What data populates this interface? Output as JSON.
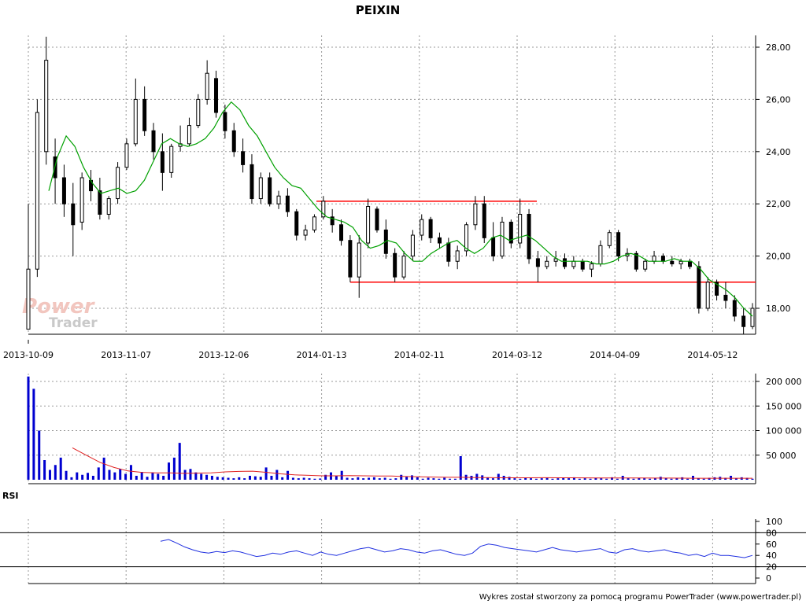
{
  "chart_data": [
    {
      "type": "candlestick",
      "title": "PEIXIN",
      "x_tick_labels": [
        "2013-10-09",
        "2013-11-07",
        "2013-12-06",
        "2014-01-13",
        "2014-02-11",
        "2014-03-12",
        "2014-04-09",
        "2014-05-12"
      ],
      "y_tick_labels": [
        "28,00",
        "26,00",
        "24,00",
        "22,00",
        "20,00",
        "18,00"
      ],
      "ylim": [
        17.0,
        28.5
      ],
      "grid": true,
      "candles_ohlc": [
        [
          17.2,
          22.0,
          17.2,
          19.5
        ],
        [
          19.5,
          26.0,
          19.2,
          25.5
        ],
        [
          24.0,
          28.4,
          23.5,
          27.5
        ],
        [
          23.8,
          24.5,
          22.0,
          23.0
        ],
        [
          23.0,
          23.5,
          21.5,
          22.0
        ],
        [
          22.0,
          22.8,
          20.0,
          21.2
        ],
        [
          21.3,
          23.2,
          21.0,
          23.0
        ],
        [
          22.9,
          23.3,
          22.1,
          22.5
        ],
        [
          22.5,
          23.0,
          21.4,
          21.6
        ],
        [
          21.6,
          22.3,
          21.4,
          22.2
        ],
        [
          22.2,
          23.6,
          22.0,
          23.4
        ],
        [
          23.4,
          24.5,
          23.3,
          24.3
        ],
        [
          24.3,
          26.8,
          24.2,
          26.0
        ],
        [
          26.0,
          26.5,
          24.6,
          24.8
        ],
        [
          24.8,
          25.1,
          23.7,
          24.0
        ],
        [
          24.0,
          24.7,
          22.5,
          23.2
        ],
        [
          23.2,
          24.3,
          23.0,
          24.2
        ],
        [
          24.2,
          25.0,
          24.0,
          24.3
        ],
        [
          24.3,
          25.3,
          24.2,
          25.0
        ],
        [
          25.0,
          26.2,
          24.9,
          26.0
        ],
        [
          26.0,
          27.5,
          25.8,
          27.0
        ],
        [
          26.8,
          27.1,
          25.3,
          25.5
        ],
        [
          25.5,
          25.8,
          24.5,
          24.8
        ],
        [
          24.8,
          25.1,
          23.8,
          24.0
        ],
        [
          24.0,
          24.5,
          23.2,
          23.5
        ],
        [
          23.5,
          23.9,
          22.0,
          22.2
        ],
        [
          22.2,
          23.2,
          22.0,
          23.0
        ],
        [
          23.0,
          23.2,
          21.9,
          22.0
        ],
        [
          22.0,
          22.5,
          21.8,
          22.3
        ],
        [
          22.3,
          22.6,
          21.5,
          21.7
        ],
        [
          21.7,
          21.8,
          20.6,
          20.8
        ],
        [
          20.8,
          21.2,
          20.6,
          21.0
        ],
        [
          21.0,
          21.6,
          20.9,
          21.5
        ],
        [
          21.5,
          22.3,
          21.4,
          22.1
        ],
        [
          21.5,
          21.8,
          20.9,
          21.2
        ],
        [
          21.2,
          21.4,
          20.4,
          20.6
        ],
        [
          20.6,
          20.8,
          19.0,
          19.2
        ],
        [
          19.2,
          20.8,
          18.4,
          20.5
        ],
        [
          20.5,
          22.2,
          20.3,
          21.9
        ],
        [
          21.8,
          21.9,
          20.9,
          21.0
        ],
        [
          21.0,
          21.4,
          19.9,
          20.1
        ],
        [
          20.1,
          20.3,
          19.0,
          19.2
        ],
        [
          19.2,
          20.2,
          19.1,
          20.0
        ],
        [
          20.0,
          21.0,
          19.8,
          20.8
        ],
        [
          20.8,
          21.6,
          20.6,
          21.4
        ],
        [
          21.4,
          21.5,
          20.5,
          20.7
        ],
        [
          20.7,
          20.9,
          20.3,
          20.5
        ],
        [
          20.5,
          20.7,
          19.6,
          19.8
        ],
        [
          19.8,
          20.4,
          19.5,
          20.2
        ],
        [
          20.2,
          21.3,
          20.0,
          21.2
        ],
        [
          21.2,
          22.3,
          21.0,
          22.0
        ],
        [
          22.0,
          22.3,
          20.5,
          20.7
        ],
        [
          20.7,
          21.3,
          19.8,
          20.0
        ],
        [
          20.0,
          21.5,
          19.9,
          21.3
        ],
        [
          21.3,
          21.4,
          20.3,
          20.5
        ],
        [
          20.5,
          22.2,
          20.3,
          21.6
        ],
        [
          21.6,
          21.8,
          19.7,
          19.9
        ],
        [
          19.9,
          20.2,
          19.0,
          19.6
        ],
        [
          19.6,
          20.0,
          19.5,
          19.8
        ],
        [
          19.8,
          20.2,
          19.6,
          19.9
        ],
        [
          19.9,
          20.1,
          19.5,
          19.6
        ],
        [
          19.6,
          20.0,
          19.5,
          19.8
        ],
        [
          19.8,
          19.9,
          19.4,
          19.5
        ],
        [
          19.5,
          19.8,
          19.2,
          19.7
        ],
        [
          19.7,
          20.6,
          19.6,
          20.4
        ],
        [
          20.4,
          21.0,
          20.3,
          20.9
        ],
        [
          20.9,
          21.0,
          19.8,
          20.0
        ],
        [
          20.0,
          20.3,
          19.8,
          20.1
        ],
        [
          20.1,
          20.2,
          19.4,
          19.5
        ],
        [
          19.5,
          19.9,
          19.4,
          19.8
        ],
        [
          19.8,
          20.2,
          19.7,
          20.0
        ],
        [
          20.0,
          20.1,
          19.7,
          19.8
        ],
        [
          19.8,
          20.0,
          19.6,
          19.7
        ],
        [
          19.7,
          19.9,
          19.5,
          19.8
        ],
        [
          19.8,
          19.9,
          19.5,
          19.6
        ],
        [
          19.6,
          19.8,
          17.8,
          18.0
        ],
        [
          18.0,
          19.2,
          17.9,
          19.0
        ],
        [
          19.0,
          19.1,
          18.3,
          18.5
        ],
        [
          18.5,
          19.0,
          18.0,
          18.3
        ],
        [
          18.3,
          18.5,
          17.5,
          17.7
        ],
        [
          17.7,
          18.0,
          17.0,
          17.3
        ],
        [
          17.3,
          18.2,
          17.2,
          18.0
        ]
      ],
      "ma_line": [
        22.5,
        23.8,
        24.6,
        24.2,
        23.4,
        22.8,
        22.4,
        22.5,
        22.6,
        22.4,
        22.5,
        22.9,
        23.6,
        24.3,
        24.5,
        24.3,
        24.2,
        24.3,
        24.5,
        24.9,
        25.5,
        25.9,
        25.6,
        25.0,
        24.6,
        24.0,
        23.4,
        23.0,
        22.7,
        22.6,
        22.2,
        21.8,
        21.5,
        21.4,
        21.3,
        21.1,
        20.6,
        20.3,
        20.4,
        20.6,
        20.5,
        20.1,
        19.8,
        19.8,
        20.1,
        20.3,
        20.5,
        20.6,
        20.3,
        20.1,
        20.3,
        20.7,
        20.8,
        20.6,
        20.7,
        20.8,
        20.6,
        20.3,
        20.0,
        19.8,
        19.8,
        19.8,
        19.8,
        19.7,
        19.7,
        19.8,
        20.0,
        20.1,
        20.0,
        19.8,
        19.8,
        19.8,
        19.9,
        19.8,
        19.8,
        19.5,
        19.1,
        18.9,
        18.7,
        18.4,
        18.0,
        17.7
      ],
      "resistance_line": 22.1,
      "support_line": 19.0,
      "watermark": [
        "Power",
        "Trader"
      ],
      "colors": {
        "candle": "#000000",
        "ma": "#00a000",
        "levels": "#ff0000",
        "grid": "#aaaaaa"
      }
    },
    {
      "type": "bar",
      "title": "",
      "y_tick_labels": [
        "200 000",
        "150 000",
        "100 000",
        "50 000"
      ],
      "ylim": [
        0,
        210000
      ],
      "values": [
        210000,
        185000,
        100000,
        40000,
        20000,
        30000,
        45000,
        18000,
        5000,
        15000,
        10000,
        14000,
        8000,
        25000,
        45000,
        20000,
        15000,
        22000,
        12000,
        30000,
        8000,
        16000,
        6000,
        15000,
        12000,
        8000,
        35000,
        45000,
        75000,
        20000,
        22000,
        15000,
        12000,
        10000,
        8000,
        6000,
        5000,
        4000,
        3000,
        5000,
        3000,
        8000,
        7000,
        6000,
        25000,
        8000,
        20000,
        5000,
        18000,
        4000,
        3000,
        4000,
        3000,
        2000,
        2500,
        10000,
        15000,
        8000,
        18000,
        4000,
        3000,
        5000,
        3000,
        4000,
        5000,
        3000,
        4000,
        2000,
        3000,
        10000,
        6000,
        9000,
        5000,
        2000,
        4000,
        3000,
        2000,
        4000,
        2000,
        2000,
        48000,
        10000,
        8000,
        12000,
        9000,
        4000,
        3000,
        12000,
        8000,
        6000,
        3000,
        2000,
        4000,
        3000,
        2000,
        3000,
        4000,
        2000,
        3000,
        4000,
        3000,
        5000,
        2000,
        3000,
        2000,
        4000,
        3000,
        2000,
        5000,
        2000,
        8000,
        3000,
        2000,
        4000,
        3000,
        2000,
        3000,
        6000,
        4000,
        2000,
        3000,
        5000,
        2000,
        8000,
        3000,
        2000,
        4000,
        5000,
        6000,
        4000,
        8000,
        3000,
        5000,
        4000,
        2000
      ],
      "avg_line": [
        65000,
        50000,
        35000,
        25000,
        18000,
        15000,
        14000,
        14000,
        13000,
        13500,
        14000,
        16000,
        17000,
        17500,
        15000,
        12000,
        10000,
        9000,
        8000,
        8000,
        8500,
        8000,
        7500,
        7500,
        6500,
        6000,
        5500,
        5000,
        5000,
        4500,
        4500,
        4000,
        4000,
        4000,
        4200,
        4000,
        4000,
        3800,
        3500,
        3500,
        3600,
        3500,
        3400,
        3300,
        3200,
        3000,
        3000,
        3000,
        3100,
        3000
      ],
      "colors": {
        "bar": "#0000d0",
        "avg": "#e02020"
      }
    },
    {
      "type": "line",
      "title": "RSI",
      "y_tick_labels": [
        "100",
        "80",
        "60",
        "40",
        "20",
        "0"
      ],
      "ylim": [
        0,
        100
      ],
      "reference_lines": [
        80,
        20
      ],
      "values": [
        65,
        68,
        62,
        55,
        50,
        46,
        44,
        47,
        45,
        48,
        46,
        42,
        38,
        40,
        44,
        42,
        46,
        48,
        44,
        40,
        46,
        42,
        40,
        44,
        48,
        52,
        54,
        50,
        46,
        48,
        52,
        50,
        46,
        44,
        48,
        50,
        46,
        42,
        40,
        44,
        56,
        60,
        58,
        54,
        52,
        50,
        48,
        46,
        50,
        54,
        50,
        48,
        46,
        48,
        50,
        52,
        46,
        44,
        50,
        52,
        48,
        46,
        48,
        50,
        46,
        44,
        40,
        42,
        38,
        44,
        40,
        40,
        38,
        36,
        40
      ],
      "colors": {
        "line": "#2030e0",
        "ref": "#000000"
      }
    }
  ],
  "footer": {
    "text": "Wykres został stworzony za pomocą programu PowerTrader (www.powertrader.pl)"
  }
}
